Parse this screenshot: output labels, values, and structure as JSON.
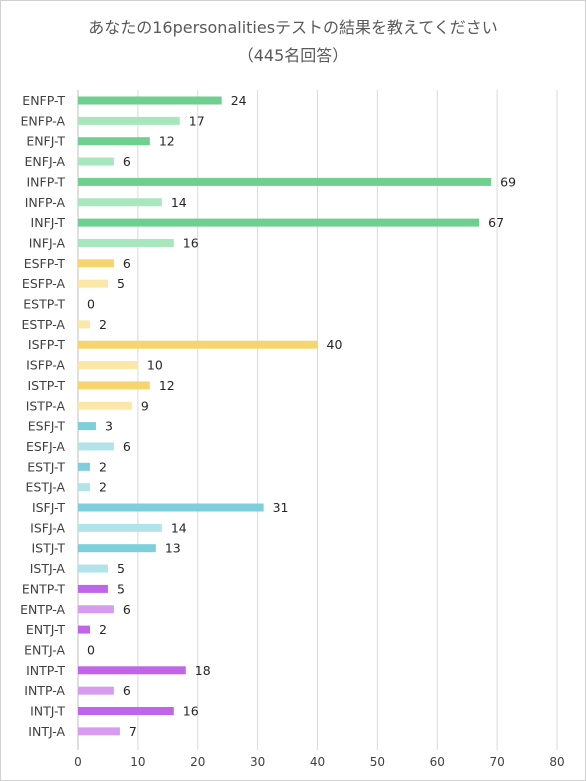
{
  "chart_data": {
    "type": "bar",
    "orientation": "horizontal",
    "title": "あなたの16personalitiesテストの結果を教えてください",
    "subtitle": "（445名回答）",
    "categories": [
      "ENFP-T",
      "ENFP-A",
      "ENFJ-T",
      "ENFJ-A",
      "INFP-T",
      "INFP-A",
      "INFJ-T",
      "INFJ-A",
      "ESFP-T",
      "ESFP-A",
      "ESTP-T",
      "ESTP-A",
      "ISFP-T",
      "ISFP-A",
      "ISTP-T",
      "ISTP-A",
      "ESFJ-T",
      "ESFJ-A",
      "ESTJ-T",
      "ESTJ-A",
      "ISFJ-T",
      "ISFJ-A",
      "ISTJ-T",
      "ISTJ-A",
      "ENTP-T",
      "ENTP-A",
      "ENTJ-T",
      "ENTJ-A",
      "INTP-T",
      "INTP-A",
      "INTJ-T",
      "INTJ-A"
    ],
    "values": [
      24,
      17,
      12,
      6,
      69,
      14,
      67,
      16,
      6,
      5,
      0,
      2,
      40,
      10,
      12,
      9,
      3,
      6,
      2,
      2,
      31,
      14,
      13,
      5,
      5,
      6,
      2,
      0,
      18,
      6,
      16,
      7
    ],
    "colors": [
      "#6fcf8e",
      "#a8e6bd",
      "#6fcf8e",
      "#a8e6bd",
      "#6fcf8e",
      "#a8e6bd",
      "#6fcf8e",
      "#a8e6bd",
      "#f7d56e",
      "#fbe7a8",
      "#f7d56e",
      "#fbe7a8",
      "#f7d56e",
      "#fbe7a8",
      "#f7d56e",
      "#fbe7a8",
      "#7dcfdb",
      "#b3e3ea",
      "#7dcfdb",
      "#b3e3ea",
      "#7dcfdb",
      "#b3e3ea",
      "#7dcfdb",
      "#b3e3ea",
      "#c064e8",
      "#d79cf0",
      "#c064e8",
      "#d79cf0",
      "#c064e8",
      "#d79cf0",
      "#c064e8",
      "#d79cf0"
    ],
    "xlim": [
      0,
      80
    ],
    "xticks": [
      "0",
      "10",
      "20",
      "30",
      "40",
      "50",
      "60",
      "70",
      "80"
    ],
    "grid": "vertical",
    "legend": "none"
  }
}
